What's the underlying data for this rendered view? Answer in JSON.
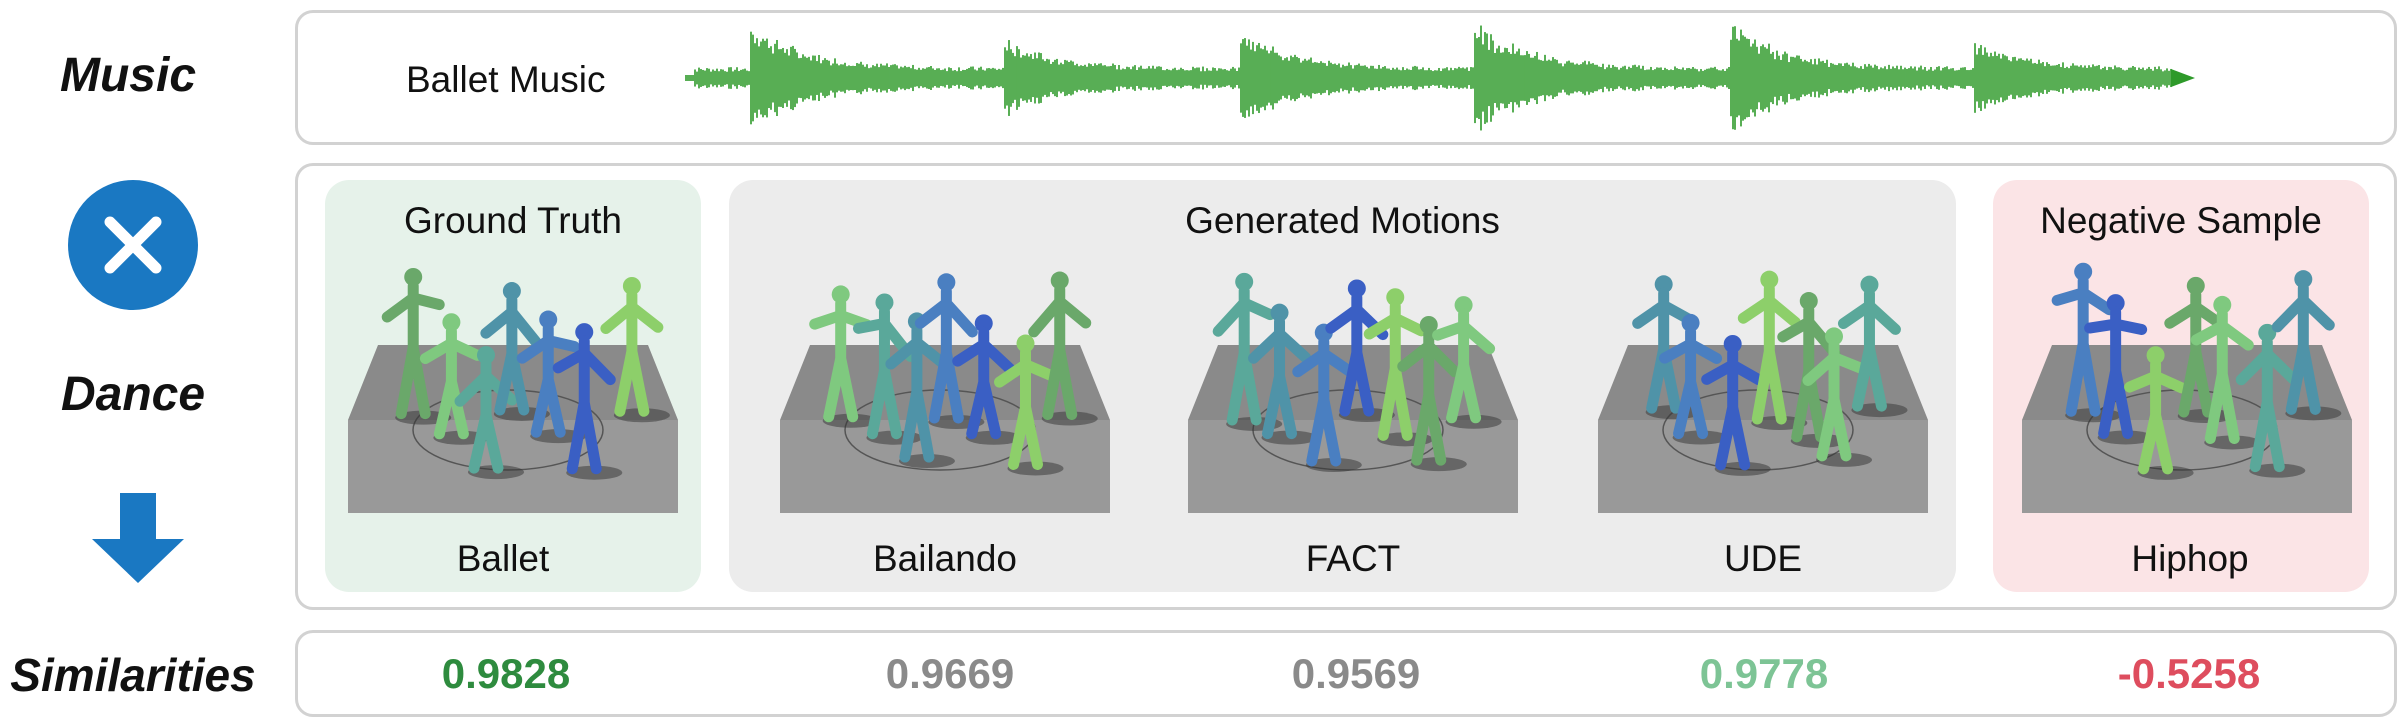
{
  "rows": {
    "music": "Music",
    "dance": "Dance",
    "similarities": "Similarities"
  },
  "music_track": {
    "label": "Ballet Music",
    "waveform_color": "#2e9a2a"
  },
  "panels": {
    "ground_truth": {
      "title": "Ground Truth",
      "color": "#e6f2ea"
    },
    "generated": {
      "title": "Generated Motions",
      "color": "#ececec"
    },
    "negative": {
      "title": "Negative Sample",
      "color": "#fbe4e6"
    }
  },
  "scenes": [
    {
      "label": "Ballet"
    },
    {
      "label": "Bailando"
    },
    {
      "label": "FACT"
    },
    {
      "label": "UDE"
    },
    {
      "label": "Hiphop"
    }
  ],
  "similarities": [
    {
      "value": "0.9828",
      "color": "#2e8b3e"
    },
    {
      "value": "0.9669",
      "color": "#8a8a8a"
    },
    {
      "value": "0.9569",
      "color": "#8a8a8a"
    },
    {
      "value": "0.9778",
      "color": "#7dc495"
    },
    {
      "value": "-0.5258",
      "color": "#de4d5e"
    }
  ],
  "icons": {
    "cross": "cross-circle-icon",
    "arrow": "arrow-down-icon",
    "accent": "#1a78c2"
  }
}
